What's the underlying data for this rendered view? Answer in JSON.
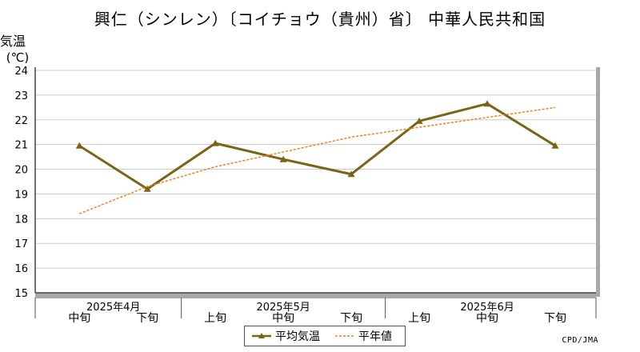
{
  "title": "興仁（シンレン）〔コイチョウ（貴州）省〕 中華人民共和国",
  "credit": "CPD/JMA",
  "chart_data": {
    "type": "line",
    "ylabel_line1": "気温",
    "ylabel_line2": "(℃)",
    "ylim": [
      15,
      24
    ],
    "yticks": [
      15,
      16,
      17,
      18,
      19,
      20,
      21,
      22,
      23,
      24
    ],
    "grid": true,
    "legend_placement": "bottom-center",
    "categories": [
      "中旬",
      "下旬",
      "上旬",
      "中旬",
      "下旬",
      "上旬",
      "中旬",
      "下旬"
    ],
    "months": [
      {
        "label": "2025年4月",
        "start": 0,
        "end": 1
      },
      {
        "label": "2025年5月",
        "start": 2,
        "end": 4
      },
      {
        "label": "2025年6月",
        "start": 5,
        "end": 7
      }
    ],
    "series": [
      {
        "name": "平均気温",
        "values": [
          20.95,
          19.2,
          21.05,
          20.4,
          19.8,
          21.95,
          22.65,
          20.95
        ],
        "color": "#7a6415",
        "style": "solid-triangle-markers"
      },
      {
        "name": "平年値",
        "values": [
          18.2,
          19.3,
          20.1,
          20.7,
          21.3,
          21.7,
          22.1,
          22.5
        ],
        "color": "#f08020",
        "style": "dashed"
      }
    ]
  }
}
